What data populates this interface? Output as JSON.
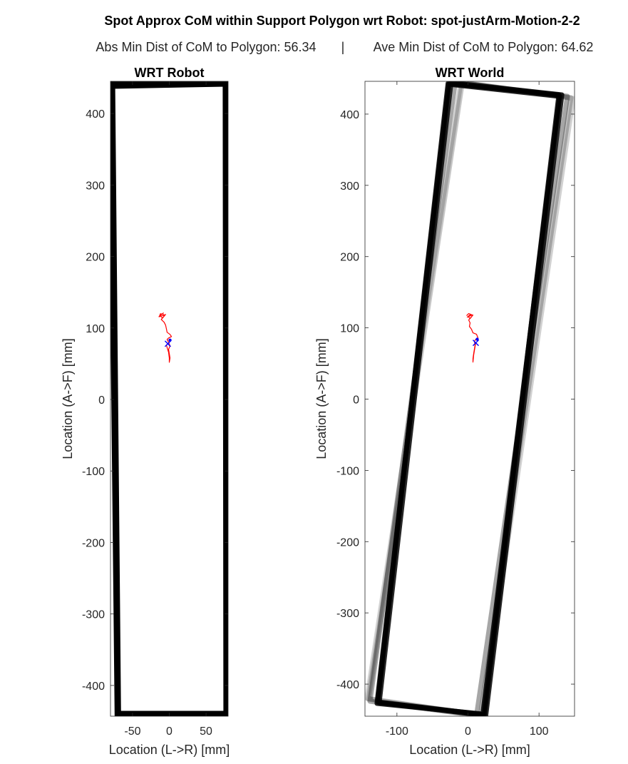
{
  "figure": {
    "title": "Spot Approx CoM within Support Polygon wrt Robot: spot-justArm-Motion-2-2",
    "subtitle_left": "Abs Min Dist of CoM to Polygon: 56.34",
    "subtitle_sep": "|",
    "subtitle_right": "Ave Min Dist of CoM to Polygon: 64.62"
  },
  "chart_data": [
    {
      "type": "line",
      "title": "WRT Robot",
      "xlabel": "Location (L->R) [mm]",
      "ylabel": "Location (A->F) [mm]",
      "xlim": [
        -80,
        80
      ],
      "ylim": [
        -443,
        445
      ],
      "xticks": [
        -50,
        0,
        50
      ],
      "xtick_labels": [
        "-50",
        "0",
        "50"
      ],
      "yticks": [
        400,
        300,
        200,
        100,
        0,
        -100,
        -200,
        -300,
        -400
      ],
      "ytick_labels": [
        "400",
        "300",
        "200",
        "100",
        "0",
        "-100",
        "-200",
        "-300",
        "-400"
      ],
      "support_polygons": [
        {
          "color": "#000000",
          "opacity": 1.0,
          "points": [
            [
              -78,
              440
            ],
            [
              77,
              442
            ],
            [
              78,
              -440
            ],
            [
              -70,
              -440
            ]
          ]
        },
        {
          "color": "#000000",
          "opacity": 1.0,
          "points": [
            [
              -80,
              442
            ],
            [
              79,
              443
            ],
            [
              80,
              -441
            ],
            [
              -71,
              -442
            ]
          ]
        },
        {
          "color": "#000000",
          "opacity": 1.0,
          "points": [
            [
              -77,
              438
            ],
            [
              76,
              441
            ],
            [
              77,
              -439
            ],
            [
              -69,
              -439
            ]
          ]
        }
      ],
      "com_trace": {
        "color": "#ff0000",
        "points": [
          [
            -14,
            115
          ],
          [
            -12,
            120
          ],
          [
            -6,
            118
          ],
          [
            -14,
            116
          ],
          [
            -8,
            121
          ],
          [
            -13,
            117
          ],
          [
            -9,
            114
          ],
          [
            -5,
            119
          ],
          [
            -11,
            112
          ],
          [
            -7,
            108
          ],
          [
            -5,
            104
          ],
          [
            -4,
            99
          ],
          [
            -3,
            94
          ],
          [
            1,
            91
          ],
          [
            3,
            88
          ],
          [
            -1,
            86
          ],
          [
            -3,
            84
          ],
          [
            -1,
            80
          ],
          [
            1,
            75
          ],
          [
            -1,
            70
          ],
          [
            0,
            64
          ],
          [
            1,
            58
          ],
          [
            0,
            52
          ],
          [
            0,
            58
          ],
          [
            -1,
            66
          ],
          [
            -4,
            76
          ],
          [
            -2,
            78
          ]
        ]
      },
      "com_marker": {
        "color": "#0000ff",
        "x": -2,
        "y": 78,
        "symbol": "x"
      },
      "com_point": {
        "color": "#0000ff",
        "x": 1,
        "y": 83
      }
    },
    {
      "type": "line",
      "title": "WRT World",
      "xlabel": "Location (L->R) [mm]",
      "ylabel": "Location (A->F) [mm]",
      "xlim": [
        -145,
        150
      ],
      "ylim": [
        -445,
        446
      ],
      "xticks": [
        -100,
        0,
        100
      ],
      "xtick_labels": [
        "-100",
        "0",
        "100"
      ],
      "yticks": [
        400,
        300,
        200,
        100,
        0,
        -100,
        -200,
        -300,
        -400
      ],
      "ytick_labels": [
        "400",
        "300",
        "200",
        "100",
        "0",
        "-100",
        "-200",
        "-300",
        "-400"
      ],
      "support_polygons": [
        {
          "color": "#000000",
          "opacity": 0.18,
          "points": [
            [
              -10,
              445
            ],
            [
              148,
              422
            ],
            [
              20,
              -444
            ],
            [
              -142,
              -420
            ]
          ]
        },
        {
          "color": "#000000",
          "opacity": 0.22,
          "points": [
            [
              -8,
              444
            ],
            [
              145,
              423
            ],
            [
              18,
              -443
            ],
            [
              -140,
              -421
            ]
          ]
        },
        {
          "color": "#000000",
          "opacity": 0.35,
          "points": [
            [
              -18,
              445
            ],
            [
              140,
              425
            ],
            [
              12,
              -444
            ],
            [
              -138,
              -424
            ]
          ]
        },
        {
          "color": "#000000",
          "opacity": 0.85,
          "points": [
            [
              -28,
              443
            ],
            [
              128,
              427
            ],
            [
              23,
              -443
            ],
            [
              -127,
              -425
            ]
          ]
        },
        {
          "color": "#000000",
          "opacity": 0.85,
          "points": [
            [
              -24,
              444
            ],
            [
              132,
              427
            ],
            [
              25,
              -444
            ],
            [
              -125,
              -426
            ]
          ]
        },
        {
          "color": "#000000",
          "opacity": 0.85,
          "points": [
            [
              -27,
              442
            ],
            [
              129,
              425
            ],
            [
              21,
              -442
            ],
            [
              -128,
              -427
            ]
          ]
        }
      ],
      "com_trace": {
        "color": "#ff0000",
        "points": [
          [
            -2,
            117
          ],
          [
            1,
            120
          ],
          [
            6,
            118
          ],
          [
            -1,
            115
          ],
          [
            4,
            119
          ],
          [
            0,
            116
          ],
          [
            3,
            113
          ],
          [
            7,
            118
          ],
          [
            1,
            111
          ],
          [
            3,
            107
          ],
          [
            2,
            102
          ],
          [
            5,
            98
          ],
          [
            7,
            93
          ],
          [
            12,
            91
          ],
          [
            14,
            86
          ],
          [
            11,
            84
          ],
          [
            9,
            81
          ],
          [
            10,
            76
          ],
          [
            9,
            70
          ],
          [
            8,
            64
          ],
          [
            7,
            57
          ],
          [
            7,
            52
          ],
          [
            8,
            62
          ],
          [
            10,
            74
          ],
          [
            11,
            80
          ]
        ]
      },
      "com_marker": {
        "color": "#0000ff",
        "x": 11,
        "y": 79,
        "symbol": "x"
      },
      "com_point": {
        "color": "#0000ff",
        "x": 13,
        "y": 84
      }
    }
  ]
}
